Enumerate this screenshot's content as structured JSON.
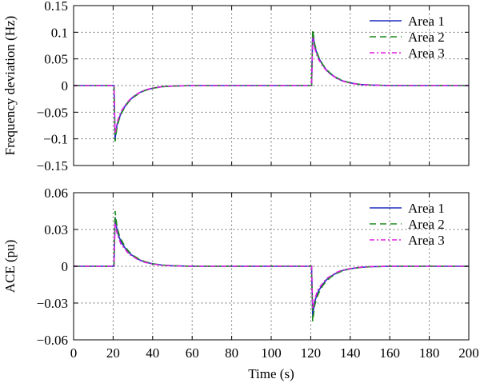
{
  "chart_data": [
    {
      "type": "line",
      "ylabel": "Frequency deviation (Hz)",
      "xlabel": "",
      "xlim": [
        0,
        200
      ],
      "ylim": [
        -0.15,
        0.15
      ],
      "xticks": [
        0,
        20,
        40,
        60,
        80,
        100,
        120,
        140,
        160,
        180,
        200
      ],
      "yticks": [
        -0.15,
        -0.1,
        -0.05,
        0,
        0.05,
        0.1,
        0.15
      ],
      "yticklabels": [
        "-0.15",
        "-0.1",
        "-0.05",
        "0",
        "0.05",
        "0.1",
        "0.15"
      ],
      "grid": true,
      "legend": "top-right",
      "series": [
        {
          "name": "Area 1",
          "color": "#1f2fbf",
          "dash": "solid",
          "x": [
            0,
            20.5,
            20.5,
            21,
            22,
            23,
            24,
            26,
            28,
            30,
            33,
            36,
            40,
            45,
            50,
            55,
            60,
            70,
            80,
            120.5,
            120.5,
            121,
            122,
            123,
            124,
            126,
            128,
            130,
            133,
            136,
            140,
            145,
            150,
            155,
            160,
            170,
            180,
            190,
            200
          ],
          "y": [
            0,
            0,
            -0.01,
            -0.1,
            -0.074,
            -0.062,
            -0.052,
            -0.039,
            -0.029,
            -0.022,
            -0.014,
            -0.009,
            -0.005,
            -0.002,
            -0.001,
            -0.0005,
            0,
            0,
            0,
            0,
            0.01,
            0.1,
            0.074,
            0.062,
            0.052,
            0.039,
            0.029,
            0.022,
            0.014,
            0.009,
            0.005,
            0.002,
            0.001,
            0.0005,
            0,
            0,
            0,
            0,
            0
          ]
        },
        {
          "name": "Area 2",
          "color": "#1e8a1e",
          "dash": "8,5",
          "x": [
            0,
            20.5,
            20.5,
            21,
            22,
            23,
            24,
            26,
            28,
            30,
            33,
            36,
            40,
            45,
            50,
            55,
            60,
            70,
            80,
            120.5,
            120.5,
            121,
            122,
            123,
            124,
            126,
            128,
            130,
            133,
            136,
            140,
            145,
            150,
            155,
            160,
            170,
            180,
            190,
            200
          ],
          "y": [
            0,
            0,
            -0.012,
            -0.105,
            -0.078,
            -0.064,
            -0.054,
            -0.04,
            -0.03,
            -0.023,
            -0.015,
            -0.0095,
            -0.005,
            -0.0022,
            -0.001,
            -0.0005,
            0,
            0,
            0,
            0,
            0.012,
            0.105,
            0.078,
            0.064,
            0.054,
            0.04,
            0.03,
            0.023,
            0.015,
            0.0095,
            0.005,
            0.0022,
            0.001,
            0.0005,
            0,
            0,
            0,
            0,
            0
          ]
        },
        {
          "name": "Area 3",
          "color": "#e020e0",
          "dash": "6,3,2,3",
          "x": [
            0,
            20.5,
            20.5,
            21,
            22,
            23,
            24,
            26,
            28,
            30,
            33,
            36,
            40,
            45,
            50,
            55,
            60,
            70,
            80,
            120.5,
            120.5,
            121,
            122,
            123,
            124,
            126,
            128,
            130,
            133,
            136,
            140,
            145,
            150,
            155,
            160,
            170,
            180,
            190,
            200
          ],
          "y": [
            0,
            0,
            -0.008,
            -0.09,
            -0.07,
            -0.058,
            -0.049,
            -0.037,
            -0.028,
            -0.021,
            -0.014,
            -0.0085,
            -0.0045,
            -0.002,
            -0.001,
            -0.0004,
            0,
            0,
            0,
            0,
            0.008,
            0.09,
            0.07,
            0.058,
            0.049,
            0.037,
            0.028,
            0.021,
            0.014,
            0.0085,
            0.0045,
            0.002,
            0.001,
            0.0004,
            0,
            0,
            0,
            0,
            0
          ]
        }
      ]
    },
    {
      "type": "line",
      "ylabel": "ACE (pu)",
      "xlabel": "Time (s)",
      "xlim": [
        0,
        200
      ],
      "ylim": [
        -0.06,
        0.06
      ],
      "xticks": [
        0,
        20,
        40,
        60,
        80,
        100,
        120,
        140,
        160,
        180,
        200
      ],
      "xticklabels": [
        "0",
        "20",
        "40",
        "60",
        "80",
        "100",
        "120",
        "140",
        "160",
        "180",
        "200"
      ],
      "yticks": [
        -0.06,
        -0.03,
        0,
        0.03,
        0.06
      ],
      "yticklabels": [
        "-0.06",
        "-0.03",
        "0",
        "0.03",
        "0.06"
      ],
      "grid": true,
      "legend": "top-right",
      "series": [
        {
          "name": "Area 1",
          "color": "#1f2fbf",
          "dash": "solid",
          "x": [
            0,
            20.5,
            20.5,
            21,
            22,
            23,
            24,
            26,
            28,
            30,
            33,
            36,
            40,
            45,
            50,
            55,
            60,
            70,
            80,
            120.5,
            120.5,
            121,
            122,
            123,
            124,
            126,
            128,
            130,
            133,
            136,
            140,
            145,
            150,
            155,
            160,
            170,
            180,
            190,
            200
          ],
          "y": [
            0,
            0,
            0.005,
            0.04,
            0.029,
            0.024,
            0.02,
            0.015,
            0.011,
            0.0085,
            0.0055,
            0.0035,
            0.002,
            0.0009,
            0.0004,
            0.0002,
            0,
            0,
            0,
            0,
            -0.005,
            -0.04,
            -0.029,
            -0.024,
            -0.02,
            -0.015,
            -0.011,
            -0.0085,
            -0.0055,
            -0.0035,
            -0.002,
            -0.0009,
            -0.0004,
            -0.0002,
            0,
            0,
            0,
            0,
            0
          ]
        },
        {
          "name": "Area 2",
          "color": "#1e8a1e",
          "dash": "8,5",
          "x": [
            0,
            20.5,
            20.5,
            21,
            22,
            23,
            24,
            26,
            28,
            30,
            33,
            36,
            40,
            45,
            50,
            55,
            60,
            70,
            80,
            120.5,
            120.5,
            121,
            122,
            123,
            124,
            126,
            128,
            130,
            133,
            136,
            140,
            145,
            150,
            155,
            160,
            170,
            180,
            190,
            200
          ],
          "y": [
            0,
            0,
            0.006,
            0.045,
            0.032,
            0.026,
            0.022,
            0.016,
            0.012,
            0.009,
            0.006,
            0.0038,
            0.0021,
            0.001,
            0.0004,
            0.0002,
            0,
            0,
            0,
            0,
            -0.006,
            -0.045,
            -0.032,
            -0.026,
            -0.022,
            -0.016,
            -0.012,
            -0.009,
            -0.006,
            -0.0038,
            -0.0021,
            -0.001,
            -0.0004,
            -0.0002,
            0,
            0,
            0,
            0,
            0
          ]
        },
        {
          "name": "Area 3",
          "color": "#e020e0",
          "dash": "6,3,2,3",
          "x": [
            0,
            20.5,
            20.5,
            21,
            22,
            23,
            24,
            26,
            28,
            30,
            33,
            36,
            40,
            45,
            50,
            55,
            60,
            70,
            80,
            120.5,
            120.5,
            121,
            122,
            123,
            124,
            126,
            128,
            130,
            133,
            136,
            140,
            145,
            150,
            155,
            160,
            170,
            180,
            190,
            200
          ],
          "y": [
            0,
            0,
            0.004,
            0.035,
            0.027,
            0.022,
            0.018,
            0.014,
            0.01,
            0.008,
            0.005,
            0.0032,
            0.0018,
            0.0008,
            0.0003,
            0.0001,
            0,
            0,
            0,
            0,
            -0.004,
            -0.035,
            -0.027,
            -0.022,
            -0.018,
            -0.014,
            -0.01,
            -0.008,
            -0.005,
            -0.0032,
            -0.0018,
            -0.0008,
            -0.0003,
            -0.0001,
            0,
            0,
            0,
            0,
            0
          ]
        }
      ]
    }
  ]
}
